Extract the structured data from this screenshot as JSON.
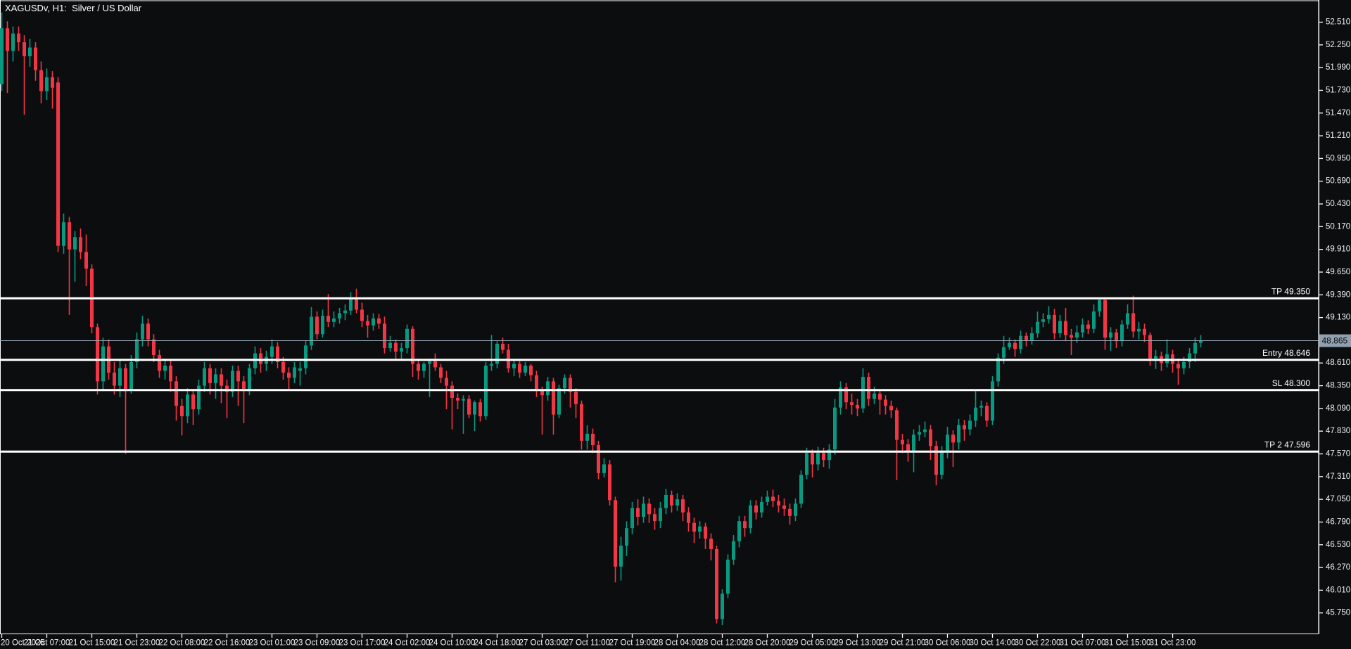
{
  "window": {
    "title": "XAGUSDv, H1:  Silver / US Dollar",
    "symbol": "XAGUSDv",
    "timeframe": "H1",
    "instrument": "Silver / US Dollar"
  },
  "colors": {
    "background": "#0C0D0F",
    "bull": "#089981",
    "bear": "#F23645",
    "axis_line": "#FFFFFF",
    "axis_text": "#F2F2F2",
    "level_line": "#FFFFFF",
    "level_text": "#FFFFFF",
    "price_line": "#9AA9B8",
    "price_badge_bg": "#90A0AF",
    "price_badge_text": "#0A0A0A"
  },
  "levels": [
    {
      "id": "tp",
      "label": "TP 49.350",
      "price": 49.35
    },
    {
      "id": "entry",
      "label": "Entry 48.646",
      "price": 48.646
    },
    {
      "id": "sl",
      "label": "SL 48.300",
      "price": 48.3
    },
    {
      "id": "tp2",
      "label": "TP 2 47.596",
      "price": 47.596
    }
  ],
  "current_price": {
    "value": 48.865,
    "label": "48.865"
  },
  "chart_data": {
    "type": "candlestick",
    "title": "XAGUSDv H1 Silver / US Dollar",
    "symbol": "XAGUSDv",
    "timeframe": "H1",
    "grid": false,
    "legend": false,
    "y_axis": {
      "min": 45.75,
      "max": 52.51,
      "step": 0.26,
      "decimals": 3,
      "side": "right"
    },
    "y_ticks": [
      52.51,
      52.25,
      51.99,
      51.73,
      51.47,
      51.21,
      50.95,
      50.69,
      50.43,
      50.17,
      49.91,
      49.65,
      49.39,
      49.13,
      48.87,
      48.61,
      48.35,
      48.09,
      47.83,
      47.57,
      47.31,
      47.05,
      46.79,
      46.53,
      46.27,
      46.01,
      45.75
    ],
    "x_tick_labels": [
      "20 Oct 2025",
      "21 Oct 07:00",
      "21 Oct 15:00",
      "21 Oct 23:00",
      "22 Oct 08:00",
      "22 Oct 16:00",
      "23 Oct 01:00",
      "23 Oct 09:00",
      "23 Oct 17:00",
      "24 Oct 02:00",
      "24 Oct 10:00",
      "24 Oct 18:00",
      "27 Oct 03:00",
      "27 Oct 11:00",
      "27 Oct 19:00",
      "28 Oct 04:00",
      "28 Oct 12:00",
      "28 Oct 20:00",
      "29 Oct 05:00",
      "29 Oct 13:00",
      "29 Oct 21:00",
      "30 Oct 06:00",
      "30 Oct 14:00",
      "30 Oct 22:00",
      "31 Oct 07:00",
      "31 Oct 15:00",
      "31 Oct 23:00"
    ],
    "bars_per_x_tick": 8,
    "levels": [
      {
        "label": "TP 49.350",
        "price": 49.35
      },
      {
        "label": "Entry 48.646",
        "price": 48.646
      },
      {
        "label": "SL 48.300",
        "price": 48.3
      },
      {
        "label": "TP 2 47.596",
        "price": 47.596
      }
    ],
    "last_price": 48.865,
    "candles_format": [
      "open",
      "high",
      "low",
      "close"
    ],
    "candles": [
      [
        51.8,
        52.62,
        51.72,
        52.44
      ],
      [
        52.44,
        52.52,
        51.7,
        52.18
      ],
      [
        52.18,
        52.46,
        52.06,
        52.38
      ],
      [
        52.38,
        52.46,
        52.18,
        52.28
      ],
      [
        52.28,
        52.36,
        51.45,
        52.12
      ],
      [
        52.12,
        52.32,
        52.0,
        52.22
      ],
      [
        52.22,
        52.28,
        51.84,
        51.96
      ],
      [
        51.96,
        52.06,
        51.58,
        51.72
      ],
      [
        51.72,
        51.98,
        51.62,
        51.88
      ],
      [
        51.88,
        51.95,
        51.52,
        51.76
      ],
      [
        51.82,
        51.88,
        49.88,
        49.95
      ],
      [
        49.95,
        50.32,
        49.86,
        50.22
      ],
      [
        50.22,
        50.28,
        49.16,
        49.91
      ],
      [
        49.91,
        50.12,
        49.54,
        50.05
      ],
      [
        50.05,
        50.15,
        49.8,
        49.88
      ],
      [
        49.88,
        50.08,
        49.49,
        49.69
      ],
      [
        49.69,
        49.74,
        48.95,
        49.02
      ],
      [
        49.02,
        49.06,
        48.25,
        48.4
      ],
      [
        48.4,
        48.9,
        48.3,
        48.8
      ],
      [
        48.8,
        48.88,
        48.42,
        48.5
      ],
      [
        48.5,
        48.62,
        48.25,
        48.35
      ],
      [
        48.35,
        48.65,
        48.22,
        48.55
      ],
      [
        48.55,
        48.6,
        47.57,
        48.3
      ],
      [
        48.3,
        48.7,
        48.26,
        48.62
      ],
      [
        48.62,
        48.96,
        48.55,
        48.88
      ],
      [
        48.88,
        49.15,
        48.8,
        49.06
      ],
      [
        49.06,
        49.12,
        48.8,
        48.88
      ],
      [
        48.88,
        48.94,
        48.62,
        48.7
      ],
      [
        48.7,
        48.76,
        48.44,
        48.52
      ],
      [
        48.52,
        48.66,
        48.42,
        48.58
      ],
      [
        48.58,
        48.64,
        48.28,
        48.4
      ],
      [
        48.4,
        48.46,
        47.95,
        48.12
      ],
      [
        48.12,
        48.2,
        47.78,
        48.0
      ],
      [
        48.0,
        48.32,
        47.92,
        48.25
      ],
      [
        48.25,
        48.3,
        47.9,
        48.08
      ],
      [
        48.08,
        48.42,
        48.02,
        48.35
      ],
      [
        48.35,
        48.62,
        48.28,
        48.55
      ],
      [
        48.55,
        48.6,
        48.25,
        48.38
      ],
      [
        48.38,
        48.55,
        48.2,
        48.48
      ],
      [
        48.48,
        48.55,
        48.15,
        48.35
      ],
      [
        48.35,
        48.42,
        47.98,
        48.28
      ],
      [
        48.28,
        48.58,
        48.22,
        48.52
      ],
      [
        48.52,
        48.58,
        48.12,
        48.4
      ],
      [
        48.4,
        48.46,
        47.92,
        48.3
      ],
      [
        48.3,
        48.6,
        48.24,
        48.55
      ],
      [
        48.55,
        48.8,
        48.48,
        48.72
      ],
      [
        48.72,
        48.78,
        48.5,
        48.6
      ],
      [
        48.6,
        48.75,
        48.52,
        48.68
      ],
      [
        48.68,
        48.88,
        48.6,
        48.8
      ],
      [
        48.8,
        48.85,
        48.55,
        48.62
      ],
      [
        48.62,
        48.68,
        48.42,
        48.5
      ],
      [
        48.5,
        48.56,
        48.3,
        48.44
      ],
      [
        48.44,
        48.62,
        48.38,
        48.56
      ],
      [
        48.52,
        48.62,
        48.35,
        48.55
      ],
      [
        48.55,
        48.86,
        48.48,
        48.81
      ],
      [
        48.81,
        49.25,
        48.76,
        49.14
      ],
      [
        49.14,
        49.2,
        48.88,
        48.94
      ],
      [
        48.94,
        49.22,
        48.9,
        49.15
      ],
      [
        49.15,
        49.4,
        49.02,
        49.08
      ],
      [
        49.08,
        49.2,
        49.02,
        49.12
      ],
      [
        49.12,
        49.24,
        49.06,
        49.18
      ],
      [
        49.18,
        49.28,
        49.1,
        49.21
      ],
      [
        49.21,
        49.42,
        49.16,
        49.36
      ],
      [
        49.36,
        49.46,
        49.18,
        49.22
      ],
      [
        49.22,
        49.3,
        49.02,
        49.09
      ],
      [
        49.09,
        49.16,
        48.9,
        49.04
      ],
      [
        49.04,
        49.18,
        48.98,
        49.12
      ],
      [
        49.12,
        49.17,
        49.0,
        49.06
      ],
      [
        49.06,
        49.14,
        48.72,
        48.78
      ],
      [
        48.78,
        48.92,
        48.74,
        48.84
      ],
      [
        48.84,
        48.88,
        48.66,
        48.74
      ],
      [
        48.74,
        48.84,
        48.66,
        48.78
      ],
      [
        48.78,
        49.05,
        48.72,
        49.0
      ],
      [
        49.0,
        49.03,
        48.45,
        48.6
      ],
      [
        48.6,
        48.66,
        48.42,
        48.52
      ],
      [
        48.52,
        48.62,
        48.44,
        48.6
      ],
      [
        48.6,
        48.66,
        48.22,
        48.63
      ],
      [
        48.63,
        48.72,
        48.52,
        48.56
      ],
      [
        48.56,
        48.6,
        48.38,
        48.44
      ],
      [
        48.44,
        48.52,
        48.08,
        48.35
      ],
      [
        48.35,
        48.4,
        47.85,
        48.21
      ],
      [
        48.21,
        48.26,
        48.08,
        48.18
      ],
      [
        48.18,
        48.24,
        47.8,
        48.2
      ],
      [
        48.2,
        48.24,
        47.98,
        48.02
      ],
      [
        48.02,
        48.18,
        47.83,
        48.16
      ],
      [
        48.16,
        48.2,
        47.94,
        48.0
      ],
      [
        48.0,
        48.62,
        47.96,
        48.58
      ],
      [
        48.58,
        48.93,
        48.52,
        48.6
      ],
      [
        48.6,
        48.86,
        48.55,
        48.83
      ],
      [
        48.83,
        48.9,
        48.72,
        48.76
      ],
      [
        48.76,
        48.83,
        48.5,
        48.55
      ],
      [
        48.55,
        48.64,
        48.46,
        48.6
      ],
      [
        48.6,
        48.63,
        48.44,
        48.5
      ],
      [
        48.5,
        48.62,
        48.46,
        48.58
      ],
      [
        48.58,
        48.6,
        48.4,
        48.47
      ],
      [
        48.47,
        48.52,
        48.22,
        48.3
      ],
      [
        48.3,
        48.34,
        47.79,
        48.24
      ],
      [
        48.24,
        48.45,
        48.18,
        48.4
      ],
      [
        48.4,
        48.44,
        47.79,
        48.02
      ],
      [
        48.02,
        48.36,
        47.98,
        48.32
      ],
      [
        48.32,
        48.48,
        48.26,
        48.44
      ],
      [
        48.44,
        48.48,
        48.1,
        48.28
      ],
      [
        48.28,
        48.32,
        47.98,
        48.14
      ],
      [
        48.14,
        48.18,
        47.62,
        47.72
      ],
      [
        47.72,
        47.9,
        47.62,
        47.8
      ],
      [
        47.8,
        47.86,
        47.58,
        47.67
      ],
      [
        47.67,
        47.72,
        47.28,
        47.35
      ],
      [
        47.35,
        47.52,
        47.3,
        47.45
      ],
      [
        47.45,
        47.5,
        46.98,
        47.04
      ],
      [
        47.04,
        47.08,
        46.1,
        46.28
      ],
      [
        46.28,
        46.62,
        46.12,
        46.52
      ],
      [
        46.52,
        46.8,
        46.4,
        46.72
      ],
      [
        46.72,
        47.02,
        46.65,
        46.95
      ],
      [
        46.95,
        47.05,
        46.75,
        46.85
      ],
      [
        46.85,
        47.08,
        46.78,
        47.0
      ],
      [
        47.0,
        47.06,
        46.78,
        46.88
      ],
      [
        46.88,
        46.95,
        46.7,
        46.8
      ],
      [
        46.8,
        47.02,
        46.72,
        46.95
      ],
      [
        46.95,
        47.17,
        46.88,
        47.1
      ],
      [
        47.1,
        47.15,
        46.9,
        46.98
      ],
      [
        46.98,
        47.12,
        46.92,
        47.05
      ],
      [
        47.05,
        47.1,
        46.8,
        46.9
      ],
      [
        46.9,
        46.96,
        46.68,
        46.78
      ],
      [
        46.78,
        46.84,
        46.55,
        46.68
      ],
      [
        46.68,
        46.8,
        46.6,
        46.74
      ],
      [
        46.74,
        46.78,
        46.48,
        46.6
      ],
      [
        46.6,
        46.66,
        46.35,
        46.48
      ],
      [
        46.48,
        46.52,
        45.63,
        45.68
      ],
      [
        45.68,
        46.02,
        45.61,
        45.97
      ],
      [
        45.97,
        46.42,
        45.92,
        46.36
      ],
      [
        46.36,
        46.64,
        46.3,
        46.57
      ],
      [
        46.57,
        46.86,
        46.5,
        46.8
      ],
      [
        46.8,
        46.86,
        46.62,
        46.72
      ],
      [
        46.72,
        47.04,
        46.66,
        46.98
      ],
      [
        46.98,
        47.04,
        46.82,
        46.9
      ],
      [
        46.9,
        47.08,
        46.84,
        47.02
      ],
      [
        47.02,
        47.15,
        46.98,
        47.08
      ],
      [
        47.08,
        47.16,
        46.96,
        47.03
      ],
      [
        47.03,
        47.1,
        46.9,
        46.98
      ],
      [
        46.98,
        47.06,
        46.86,
        46.94
      ],
      [
        46.94,
        47.0,
        46.76,
        46.86
      ],
      [
        46.86,
        47.06,
        46.8,
        47.0
      ],
      [
        47.0,
        47.38,
        46.95,
        47.33
      ],
      [
        47.33,
        47.64,
        47.28,
        47.58
      ],
      [
        47.58,
        47.62,
        47.3,
        47.45
      ],
      [
        47.45,
        47.65,
        47.38,
        47.58
      ],
      [
        47.58,
        47.64,
        47.42,
        47.5
      ],
      [
        47.5,
        47.68,
        47.4,
        47.62
      ],
      [
        47.62,
        48.2,
        47.56,
        48.1
      ],
      [
        48.1,
        48.4,
        48.02,
        48.33
      ],
      [
        48.33,
        48.38,
        48.08,
        48.16
      ],
      [
        48.16,
        48.26,
        48.02,
        48.13
      ],
      [
        48.13,
        48.2,
        48.0,
        48.09
      ],
      [
        48.09,
        48.55,
        48.04,
        48.45
      ],
      [
        48.45,
        48.5,
        48.12,
        48.2
      ],
      [
        48.2,
        48.34,
        48.14,
        48.26
      ],
      [
        48.26,
        48.3,
        48.02,
        48.19
      ],
      [
        48.19,
        48.24,
        48.02,
        48.12
      ],
      [
        48.12,
        48.18,
        47.98,
        48.07
      ],
      [
        48.07,
        48.1,
        47.27,
        47.73
      ],
      [
        47.73,
        47.8,
        47.58,
        47.68
      ],
      [
        47.68,
        47.74,
        47.48,
        47.59
      ],
      [
        47.59,
        47.85,
        47.36,
        47.79
      ],
      [
        47.79,
        47.9,
        47.72,
        47.82
      ],
      [
        47.82,
        47.94,
        47.76,
        47.85
      ],
      [
        47.85,
        47.9,
        47.5,
        47.66
      ],
      [
        47.66,
        47.72,
        47.21,
        47.33
      ],
      [
        47.33,
        47.66,
        47.28,
        47.59
      ],
      [
        47.59,
        47.88,
        47.52,
        47.79
      ],
      [
        47.79,
        47.84,
        47.42,
        47.7
      ],
      [
        47.7,
        47.97,
        47.62,
        47.9
      ],
      [
        47.9,
        47.96,
        47.72,
        47.85
      ],
      [
        47.85,
        48.02,
        47.78,
        47.95
      ],
      [
        47.95,
        48.3,
        47.88,
        48.1
      ],
      [
        48.1,
        48.18,
        48.0,
        48.12
      ],
      [
        48.12,
        48.16,
        47.88,
        47.95
      ],
      [
        47.95,
        48.46,
        47.9,
        48.4
      ],
      [
        48.4,
        48.72,
        48.34,
        48.67
      ],
      [
        48.67,
        48.92,
        48.6,
        48.79
      ],
      [
        48.79,
        48.9,
        48.76,
        48.84
      ],
      [
        48.84,
        48.88,
        48.68,
        48.77
      ],
      [
        48.77,
        48.98,
        48.72,
        48.92
      ],
      [
        48.92,
        48.96,
        48.8,
        48.87
      ],
      [
        48.87,
        49.02,
        48.82,
        48.95
      ],
      [
        48.95,
        49.2,
        48.9,
        49.08
      ],
      [
        49.08,
        49.18,
        49.02,
        49.11
      ],
      [
        49.11,
        49.26,
        49.06,
        49.16
      ],
      [
        49.16,
        49.23,
        48.88,
        48.95
      ],
      [
        48.95,
        49.16,
        48.9,
        49.09
      ],
      [
        49.09,
        49.24,
        48.86,
        48.93
      ],
      [
        48.93,
        49.0,
        48.7,
        48.9
      ],
      [
        48.9,
        49.04,
        48.84,
        48.96
      ],
      [
        48.96,
        49.12,
        48.9,
        49.05
      ],
      [
        49.05,
        49.1,
        48.94,
        49.0
      ],
      [
        49.0,
        49.28,
        48.95,
        49.2
      ],
      [
        49.2,
        49.35,
        49.14,
        49.33
      ],
      [
        49.33,
        49.36,
        48.76,
        48.9
      ],
      [
        48.9,
        49.02,
        48.75,
        48.96
      ],
      [
        48.96,
        49.0,
        48.78,
        48.86
      ],
      [
        48.86,
        49.1,
        48.8,
        49.05
      ],
      [
        49.05,
        49.28,
        49.0,
        49.18
      ],
      [
        49.18,
        49.38,
        48.9,
        48.97
      ],
      [
        48.97,
        49.08,
        48.88,
        49.0
      ],
      [
        49.0,
        49.06,
        48.85,
        48.93
      ],
      [
        48.93,
        48.96,
        48.58,
        48.66
      ],
      [
        48.66,
        48.76,
        48.54,
        48.69
      ],
      [
        48.69,
        48.74,
        48.52,
        48.61
      ],
      [
        48.61,
        48.88,
        48.56,
        48.71
      ],
      [
        48.71,
        48.76,
        48.5,
        48.6
      ],
      [
        48.6,
        48.66,
        48.36,
        48.55
      ],
      [
        48.55,
        48.68,
        48.48,
        48.62
      ],
      [
        48.62,
        48.78,
        48.55,
        48.72
      ],
      [
        48.72,
        48.9,
        48.62,
        48.84
      ],
      [
        48.84,
        48.93,
        48.79,
        48.865
      ]
    ]
  }
}
